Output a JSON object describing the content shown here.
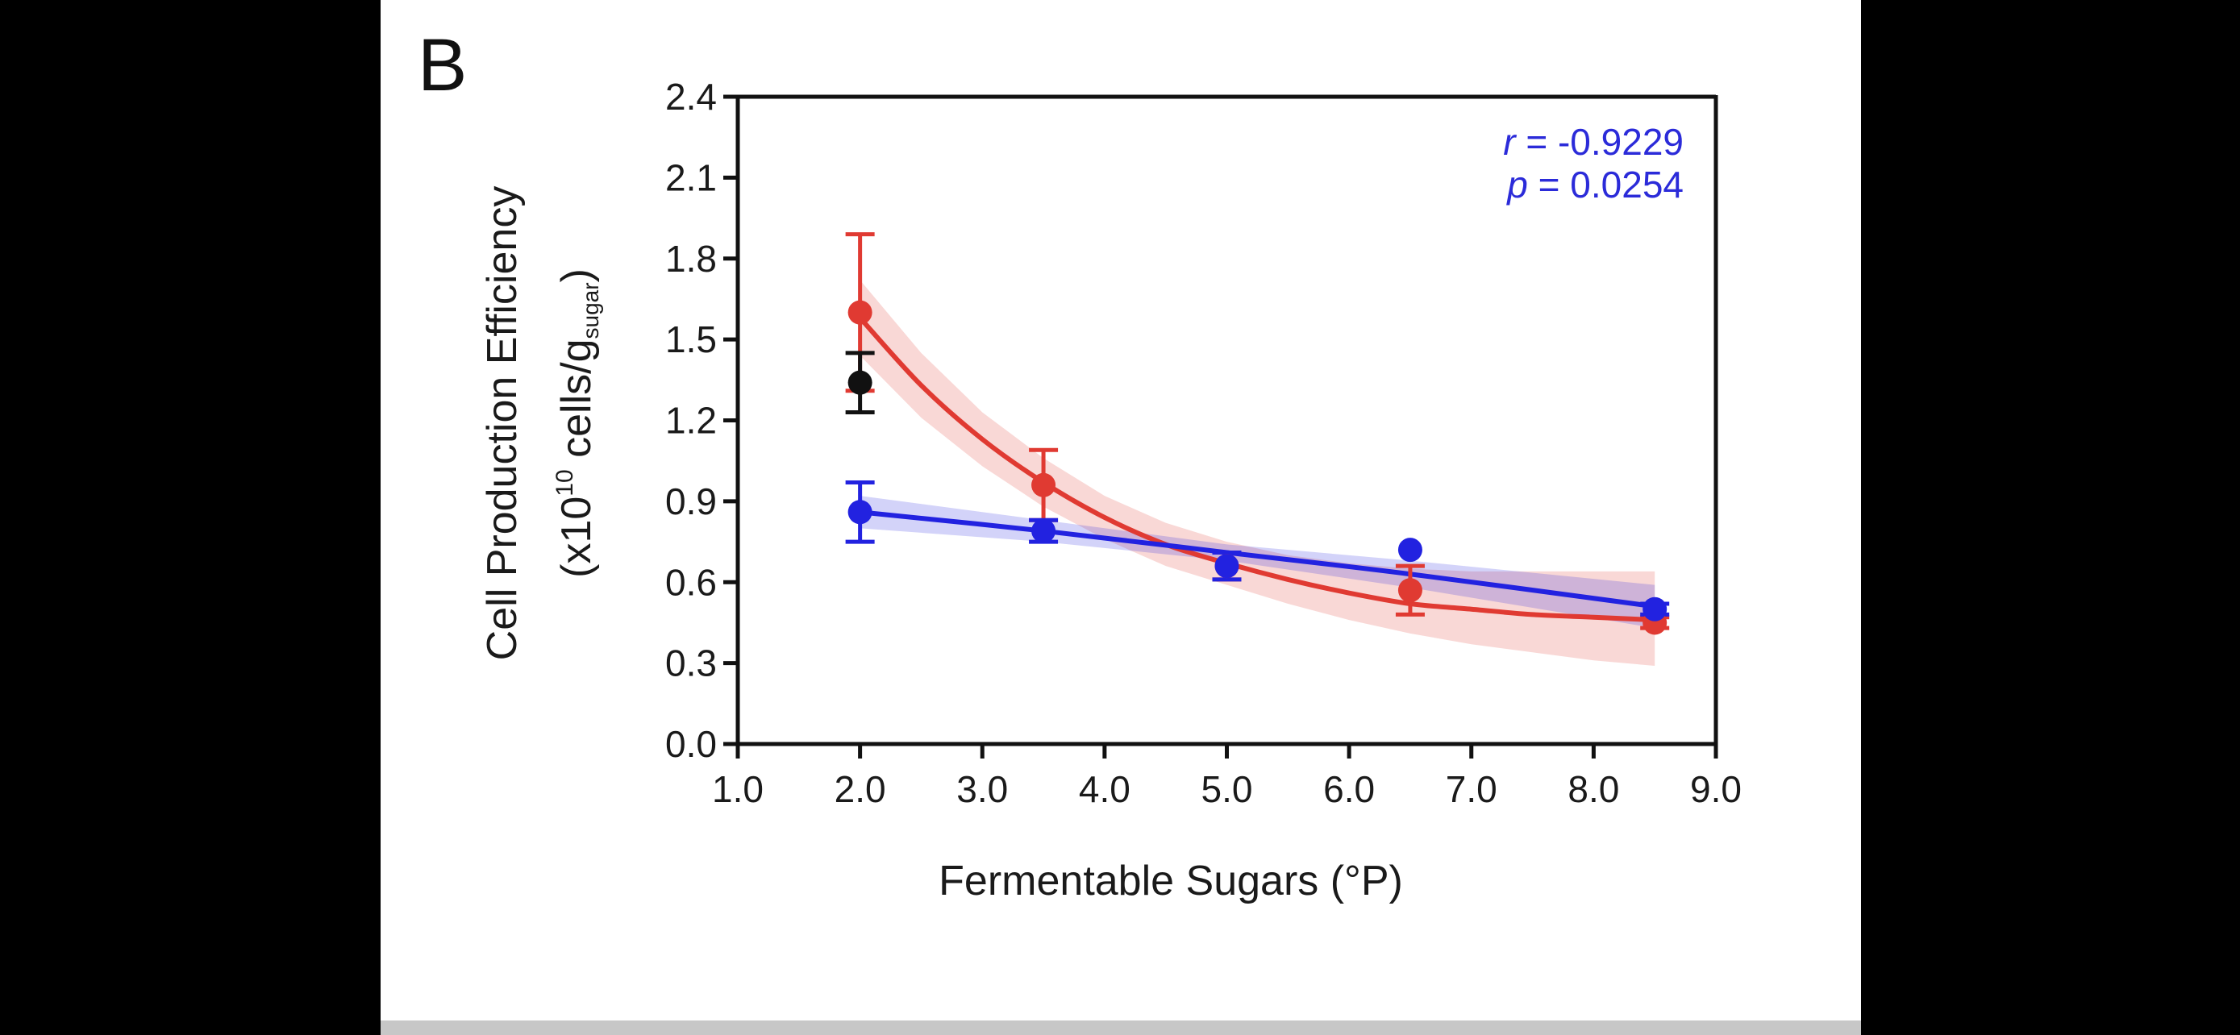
{
  "panel_label": "B",
  "chart_data": {
    "type": "scatter",
    "title": "",
    "xlabel": "Fermentable Sugars (°P)",
    "ylabel_line1": "Cell Production Efficiency",
    "ylabel_line2_prefix": "(x10",
    "ylabel_line2_exp": "10",
    "ylabel_line2_mid": " cells/g",
    "ylabel_line2_sub": "sugar",
    "ylabel_line2_suffix": ")",
    "xlim": [
      1.0,
      9.0
    ],
    "ylim": [
      0.0,
      2.4
    ],
    "xticks": [
      "1.0",
      "2.0",
      "3.0",
      "4.0",
      "5.0",
      "6.0",
      "7.0",
      "8.0",
      "9.0"
    ],
    "yticks": [
      "0.0",
      "0.3",
      "0.6",
      "0.9",
      "1.2",
      "1.5",
      "1.8",
      "2.1",
      "2.4"
    ],
    "grid": false,
    "annotation": {
      "r_symbol": "r",
      "r_value": " = -0.9229",
      "p_symbol": "p",
      "p_value": " = 0.0254",
      "color": "#2b2bd9"
    },
    "series": [
      {
        "color": "#e03a32",
        "points": [
          {
            "x": 2.0,
            "y": 1.6,
            "err": 0.29
          },
          {
            "x": 3.5,
            "y": 0.96,
            "err": 0.13
          },
          {
            "x": 5.0,
            "y": 0.66,
            "err": 0.05
          },
          {
            "x": 6.5,
            "y": 0.57,
            "err": 0.09
          },
          {
            "x": 8.5,
            "y": 0.45,
            "err": 0.02
          }
        ],
        "fit": {
          "x": [
            2.0,
            2.5,
            3.0,
            3.5,
            4.0,
            4.5,
            5.0,
            5.5,
            6.0,
            6.5,
            7.0,
            7.5,
            8.0,
            8.5
          ],
          "y": [
            1.58,
            1.33,
            1.13,
            0.97,
            0.84,
            0.74,
            0.67,
            0.61,
            0.56,
            0.52,
            0.5,
            0.48,
            0.47,
            0.46
          ],
          "band_upper": [
            1.72,
            1.45,
            1.23,
            1.06,
            0.92,
            0.82,
            0.75,
            0.7,
            0.67,
            0.65,
            0.64,
            0.64,
            0.64,
            0.64
          ],
          "band_lower": [
            1.44,
            1.21,
            1.03,
            0.88,
            0.76,
            0.66,
            0.59,
            0.52,
            0.46,
            0.41,
            0.37,
            0.34,
            0.31,
            0.29
          ]
        }
      },
      {
        "color": "#2222e0",
        "points": [
          {
            "x": 2.0,
            "y": 0.86,
            "err": 0.11
          },
          {
            "x": 3.5,
            "y": 0.79,
            "err": 0.04
          },
          {
            "x": 5.0,
            "y": 0.66,
            "err": 0.05
          },
          {
            "x": 6.5,
            "y": 0.72,
            "err": 0.0
          },
          {
            "x": 8.5,
            "y": 0.5,
            "err": 0.02
          }
        ],
        "fit": {
          "x": [
            2.0,
            3.5,
            5.0,
            6.5,
            8.5
          ],
          "y": [
            0.86,
            0.79,
            0.71,
            0.63,
            0.51
          ],
          "band_upper": [
            0.92,
            0.83,
            0.74,
            0.68,
            0.59
          ],
          "band_lower": [
            0.8,
            0.75,
            0.68,
            0.58,
            0.43
          ]
        }
      },
      {
        "color": "#111111",
        "points": [
          {
            "x": 2.0,
            "y": 1.34,
            "err": 0.11
          }
        ]
      }
    ]
  }
}
